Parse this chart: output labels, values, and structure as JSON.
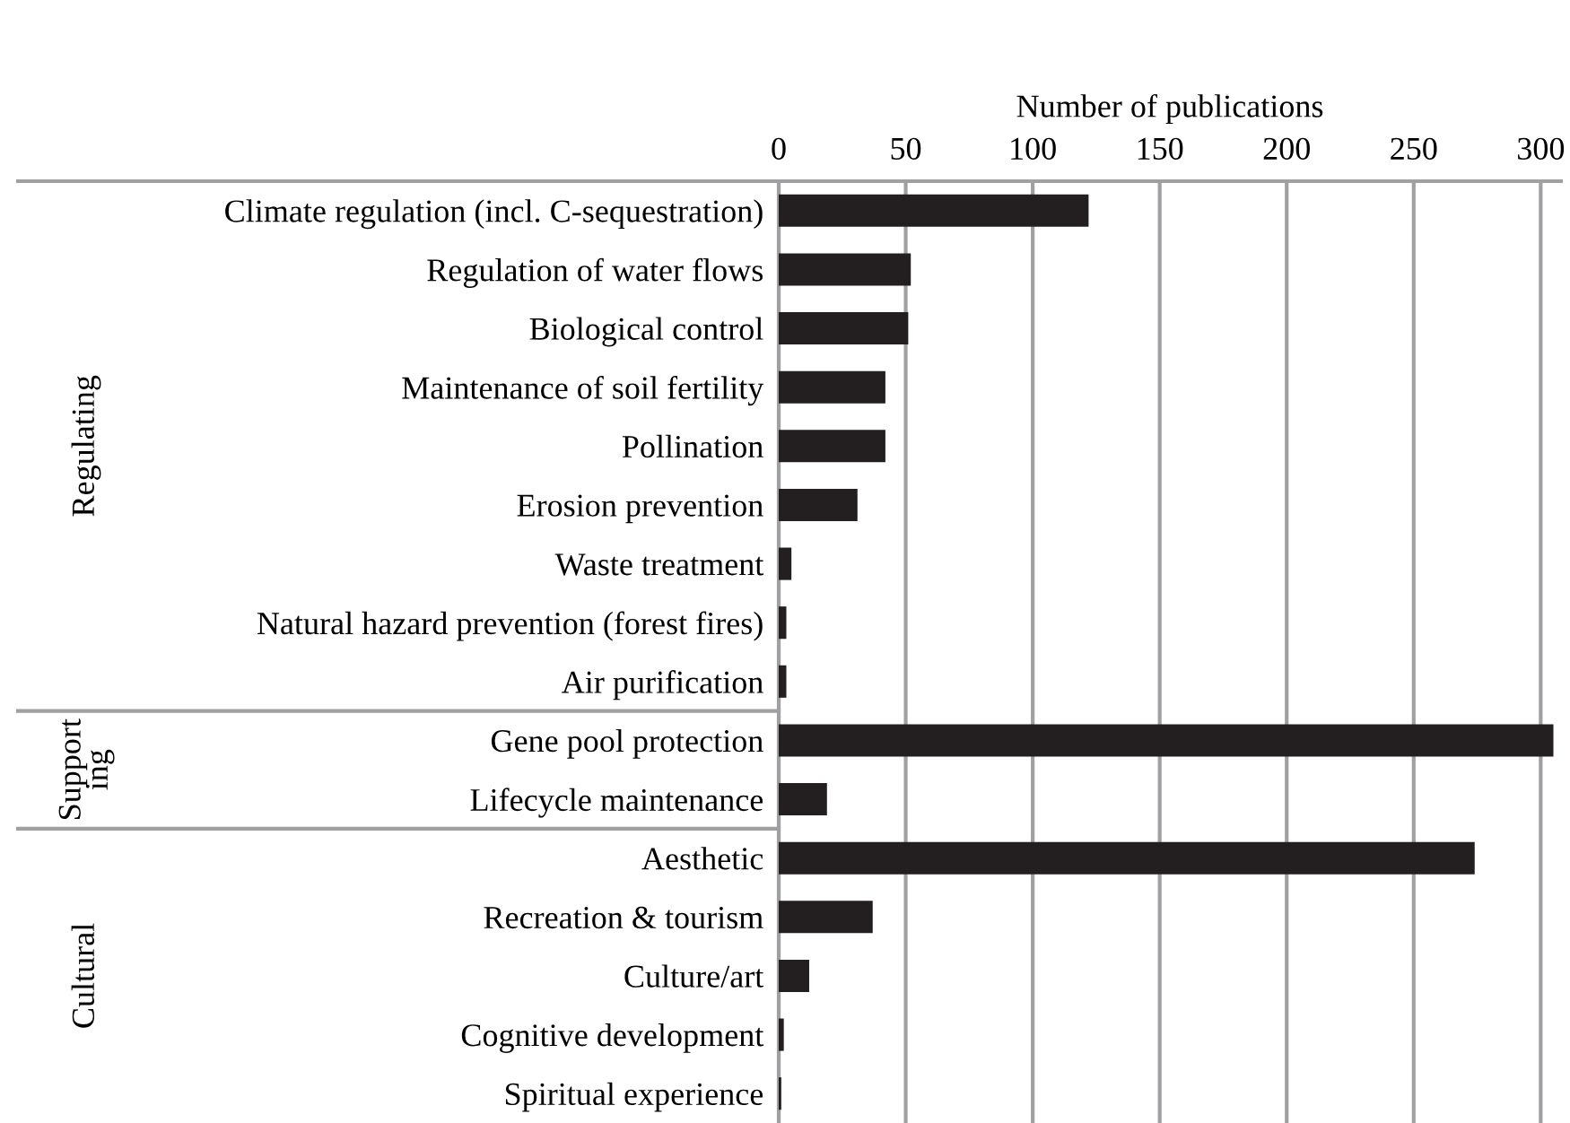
{
  "chart_data": {
    "type": "bar",
    "orientation": "horizontal",
    "xlabel": "Number of publications",
    "categories": [
      "Climate regulation (incl. C-sequestration)",
      "Regulation of water flows",
      "Biological control",
      "Maintenance of soil fertility",
      "Pollination",
      "Erosion prevention",
      "Waste treatment",
      "Natural hazard prevention (forest fires)",
      "Air purification",
      "Gene pool protection",
      "Lifecycle maintenance",
      "Aesthetic",
      "Recreation & tourism",
      "Culture/art",
      "Cognitive development",
      "Spiritual experience"
    ],
    "values": [
      122,
      52,
      51,
      42,
      42,
      31,
      5,
      3,
      3,
      305,
      19,
      274,
      37,
      12,
      2,
      1
    ],
    "color": "#231f20",
    "xlim": [
      0,
      308
    ],
    "xticks": [
      0,
      50,
      100,
      150,
      200,
      250,
      300
    ],
    "grid": "x",
    "annotations": [
      "Regulating",
      "Support\ning",
      "Cultural"
    ]
  }
}
